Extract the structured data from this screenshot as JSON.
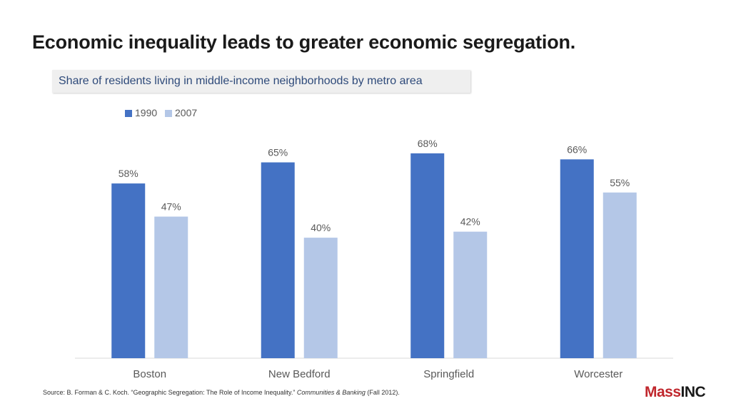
{
  "title": "Economic inequality leads to greater economic segregation.",
  "subtitle": "Share of residents living in middle-income neighborhoods by metro area",
  "chart_data": {
    "type": "bar",
    "categories": [
      "Boston",
      "New Bedford",
      "Springfield",
      "Worcester"
    ],
    "series": [
      {
        "name": "1990",
        "values": [
          58,
          65,
          68,
          66
        ],
        "color": "#4472c4"
      },
      {
        "name": "2007",
        "values": [
          47,
          40,
          42,
          55
        ],
        "color": "#b4c7e7"
      }
    ],
    "data_labels": [
      [
        "58%",
        "65%",
        "68%",
        "66%"
      ],
      [
        "47%",
        "40%",
        "42%",
        "55%"
      ]
    ],
    "ylim": [
      0,
      81
    ],
    "legend_position": "top-left",
    "grid": false,
    "xlabel": "",
    "ylabel": ""
  },
  "source": {
    "prefix": "Source: B. Forman & C. Koch. “Geographic Segregation: The Role of Income Inequality.” ",
    "publication": "Communities & Banking",
    "suffix": " (Fall 2012)."
  },
  "logo": {
    "part1": "Mass",
    "part2": "INC"
  },
  "colors": {
    "axis": "#d9d9d9",
    "text": "#595959"
  }
}
